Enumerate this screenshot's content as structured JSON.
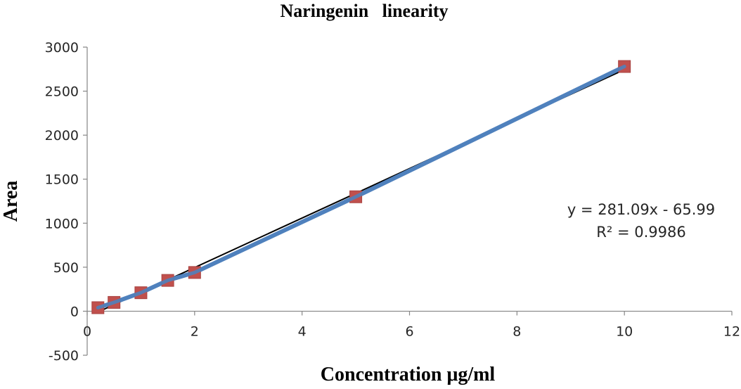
{
  "chart_data": {
    "type": "scatter",
    "title": "Naringenin   linearity",
    "xlabel": "Concentration μg/ml",
    "ylabel": "Area",
    "xlim": [
      0,
      12
    ],
    "ylim": [
      -500,
      3000
    ],
    "x_ticks": [
      0,
      2,
      4,
      6,
      8,
      10,
      12
    ],
    "y_ticks": [
      -500,
      0,
      500,
      1000,
      1500,
      2000,
      2500,
      3000
    ],
    "grid": false,
    "legend": "none",
    "series": [
      {
        "x": [
          0.2,
          0.5,
          1,
          1.5,
          2,
          5,
          10
        ],
        "y": [
          40,
          100,
          210,
          350,
          440,
          1300,
          2780
        ],
        "marker": "square",
        "marker_color": "#c0504d",
        "line_color": "#4f81bd"
      }
    ],
    "trendline": {
      "slope": 281.09,
      "intercept": -65.99,
      "color": "#000000",
      "equation": "y = 281.09x - 65.99",
      "r_squared": "R² = 0.9986"
    }
  }
}
